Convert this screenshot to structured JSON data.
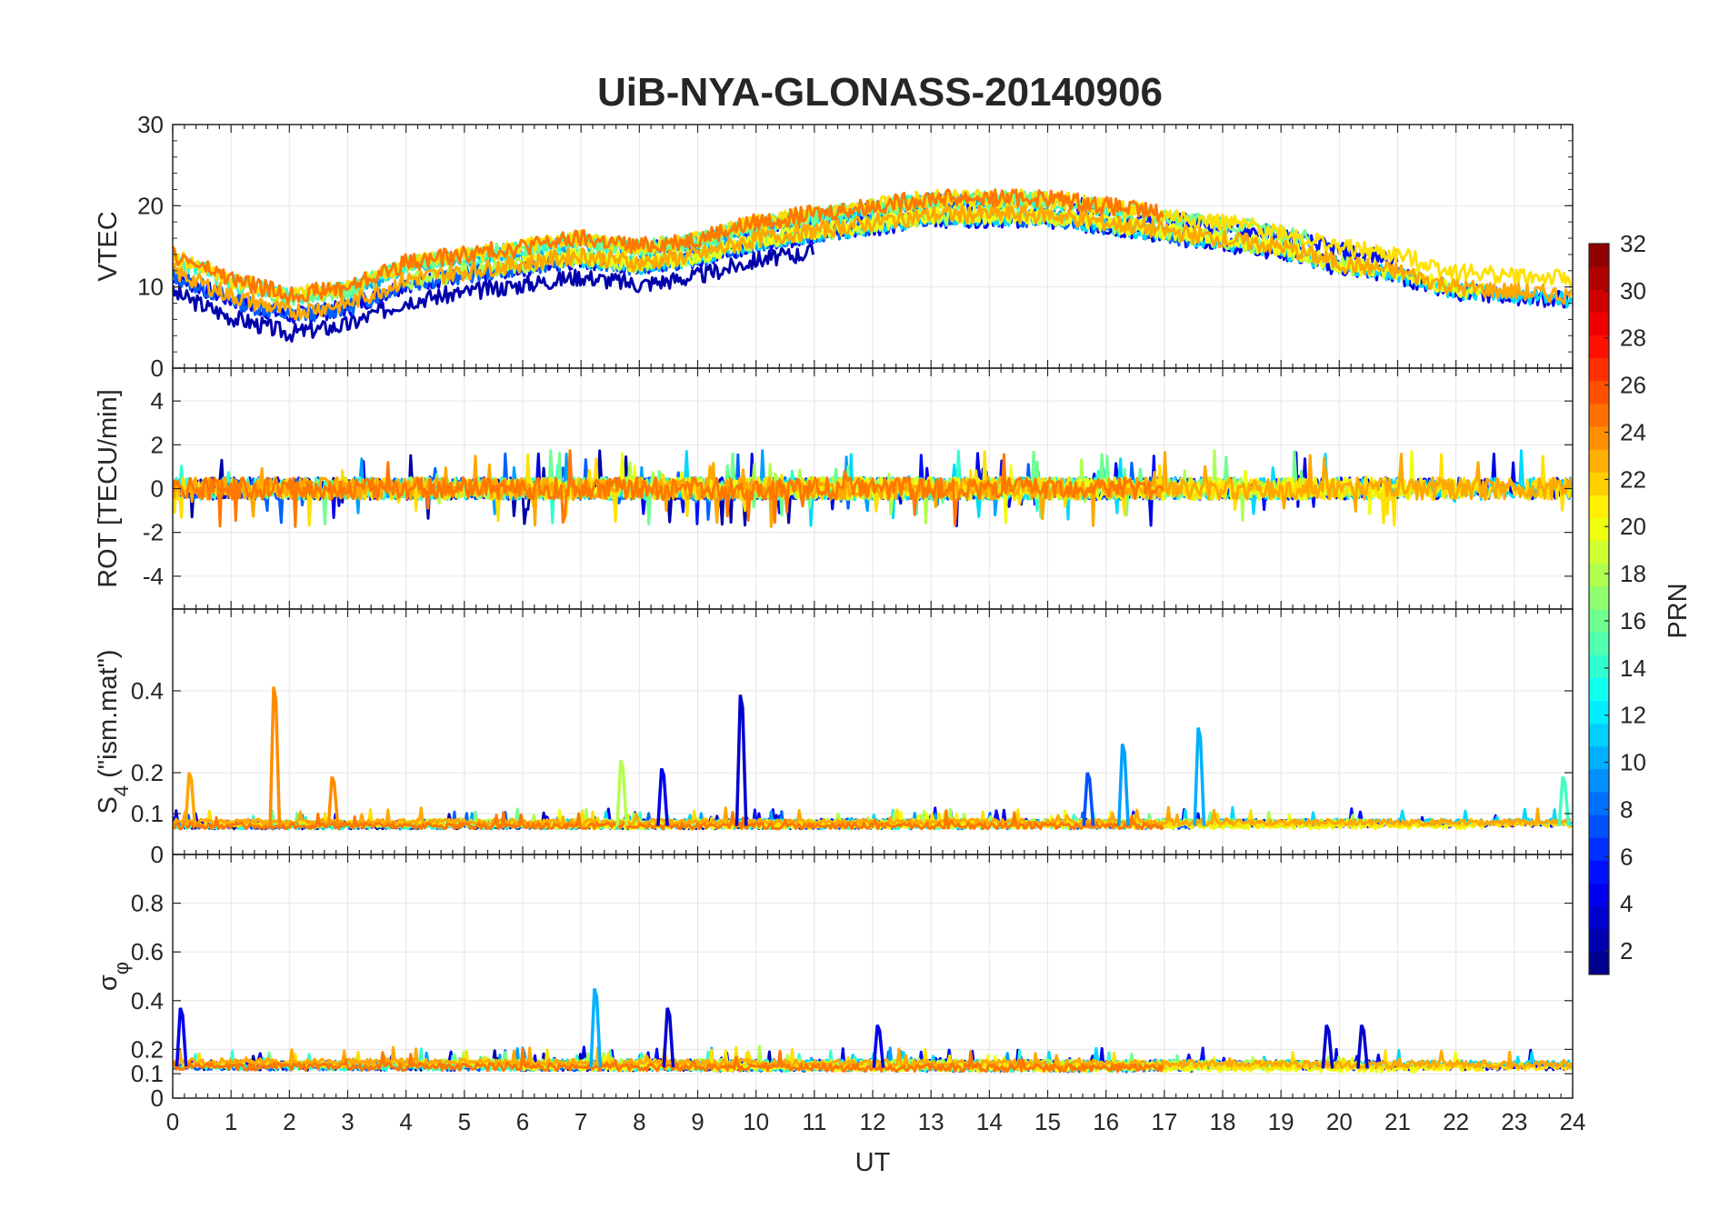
{
  "chart_data": {
    "type": "line",
    "title": "UiB-NYA-GLONASS-20140906",
    "xlabel": "UT",
    "xlim": [
      0,
      24
    ],
    "xticks": [
      "0",
      "1",
      "2",
      "3",
      "4",
      "5",
      "6",
      "7",
      "8",
      "9",
      "10",
      "11",
      "12",
      "13",
      "14",
      "15",
      "16",
      "17",
      "18",
      "19",
      "20",
      "21",
      "22",
      "23",
      "24"
    ],
    "grid": true,
    "panels": [
      {
        "id": "vtec",
        "ylabel": "VTEC",
        "ylim": [
          0,
          30
        ],
        "yticks": [
          0,
          10,
          20,
          30
        ],
        "ytick_labels": [
          "0",
          "10",
          "20",
          "30"
        ],
        "trend": [
          [
            0,
            11
          ],
          [
            1,
            8
          ],
          [
            2,
            6
          ],
          [
            3,
            7
          ],
          [
            4,
            10
          ],
          [
            5,
            11
          ],
          [
            6,
            12
          ],
          [
            7,
            13
          ],
          [
            8,
            12
          ],
          [
            9,
            13
          ],
          [
            10,
            15
          ],
          [
            11,
            16
          ],
          [
            12,
            17
          ],
          [
            13,
            18
          ],
          [
            14,
            18
          ],
          [
            15,
            18
          ],
          [
            16,
            17
          ],
          [
            17,
            16
          ],
          [
            18,
            15
          ],
          [
            19,
            14
          ],
          [
            20,
            12
          ],
          [
            21,
            11
          ],
          [
            22,
            9
          ],
          [
            23,
            8.5
          ],
          [
            24,
            8
          ]
        ],
        "noise": 1.8
      },
      {
        "id": "rot",
        "ylabel": "ROT [TECU/min]",
        "ylim": [
          -5.5,
          5.5
        ],
        "yticks": [
          -4,
          -2,
          0,
          2,
          4
        ],
        "ytick_labels": [
          "-4",
          "-2",
          "0",
          "2",
          "4"
        ],
        "trend": [
          [
            0,
            0
          ],
          [
            24,
            0
          ]
        ],
        "noise": 0.5
      },
      {
        "id": "s4",
        "ylabel": "S4 (\"ism.mat\")",
        "ylabel_main": "S",
        "ylabel_sub": "4",
        "ylabel_rest": " (\"ism.mat\")",
        "ylim": [
          0,
          0.6
        ],
        "yticks": [
          0,
          0.1,
          0.2,
          0.4
        ],
        "ytick_labels": [
          "0",
          "0.1",
          "0.2",
          "0.4"
        ],
        "trend": [
          [
            0,
            0.07
          ],
          [
            24,
            0.07
          ]
        ],
        "noise": 0.015,
        "spikes": [
          {
            "x": 1.75,
            "y": 0.41,
            "color": "#ff8c00"
          },
          {
            "x": 2.75,
            "y": 0.19,
            "color": "#ff8c00"
          },
          {
            "x": 0.3,
            "y": 0.2,
            "color": "#ffa500"
          },
          {
            "x": 7.7,
            "y": 0.23,
            "color": "#b4ff50"
          },
          {
            "x": 8.4,
            "y": 0.21,
            "color": "#0000ee"
          },
          {
            "x": 9.75,
            "y": 0.39,
            "color": "#0000d0"
          },
          {
            "x": 15.7,
            "y": 0.2,
            "color": "#0050ff"
          },
          {
            "x": 16.3,
            "y": 0.27,
            "color": "#00a0ff"
          },
          {
            "x": 17.6,
            "y": 0.31,
            "color": "#00b0ff"
          },
          {
            "x": 23.85,
            "y": 0.19,
            "color": "#40ffc0"
          }
        ]
      },
      {
        "id": "sigma",
        "ylabel": "σφ",
        "ylabel_main": "σ",
        "ylabel_sub": "φ",
        "ylim": [
          0,
          1
        ],
        "yticks": [
          0,
          0.1,
          0.2,
          0.4,
          0.6,
          0.8
        ],
        "ytick_labels": [
          "0",
          "0.1",
          "0.2",
          "0.4",
          "0.6",
          "0.8"
        ],
        "trend": [
          [
            0,
            0.13
          ],
          [
            24,
            0.12
          ]
        ],
        "noise": 0.03,
        "spikes": [
          {
            "x": 0.15,
            "y": 0.37,
            "color": "#0000ee"
          },
          {
            "x": 7.25,
            "y": 0.45,
            "color": "#00b0ff"
          },
          {
            "x": 8.5,
            "y": 0.37,
            "color": "#0000d0"
          },
          {
            "x": 12.1,
            "y": 0.3,
            "color": "#0000ee"
          },
          {
            "x": 19.8,
            "y": 0.3,
            "color": "#0000d0"
          },
          {
            "x": 20.4,
            "y": 0.3,
            "color": "#0000d0"
          }
        ]
      }
    ],
    "colorbar": {
      "label": "PRN",
      "min": 1,
      "max": 32,
      "ticks": [
        "2",
        "4",
        "6",
        "8",
        "10",
        "12",
        "14",
        "16",
        "18",
        "20",
        "22",
        "24",
        "26",
        "28",
        "30",
        "32"
      ],
      "colormap": "jet"
    },
    "series": [
      {
        "name": "PRN 2",
        "color": "#0000ac",
        "start": 0.0,
        "end": 11.0,
        "seed": 3
      },
      {
        "name": "PRN 4",
        "color": "#0000e8",
        "start": 0.0,
        "end": 24.0,
        "seed": 7
      },
      {
        "name": "PRN 5",
        "color": "#0010ff",
        "start": 8.0,
        "end": 21.0,
        "seed": 11
      },
      {
        "name": "PRN 7",
        "color": "#0060ff",
        "start": 0.0,
        "end": 17.5,
        "seed": 13
      },
      {
        "name": "PRN 9",
        "color": "#00a0ff",
        "start": 3.0,
        "end": 15.0,
        "seed": 17
      },
      {
        "name": "PRN 11",
        "color": "#00d8ff",
        "start": 6.5,
        "end": 24.0,
        "seed": 19
      },
      {
        "name": "PRN 13",
        "color": "#30ffd0",
        "start": 0.0,
        "end": 16.5,
        "seed": 23
      },
      {
        "name": "PRN 15",
        "color": "#70ff90",
        "start": 1.5,
        "end": 19.5,
        "seed": 29
      },
      {
        "name": "PRN 17",
        "color": "#b0ff50",
        "start": 4.0,
        "end": 20.5,
        "seed": 31
      },
      {
        "name": "PRN 19",
        "color": "#f0ff10",
        "start": 6.0,
        "end": 22.5,
        "seed": 37
      },
      {
        "name": "PRN 20",
        "color": "#ffe000",
        "start": 0.0,
        "end": 24.0,
        "seed": 41
      },
      {
        "name": "PRN 22",
        "color": "#ffa800",
        "start": 0.0,
        "end": 24.0,
        "seed": 43
      },
      {
        "name": "PRN 24",
        "color": "#ff7800",
        "start": 0.0,
        "end": 17.0,
        "seed": 47
      }
    ]
  }
}
